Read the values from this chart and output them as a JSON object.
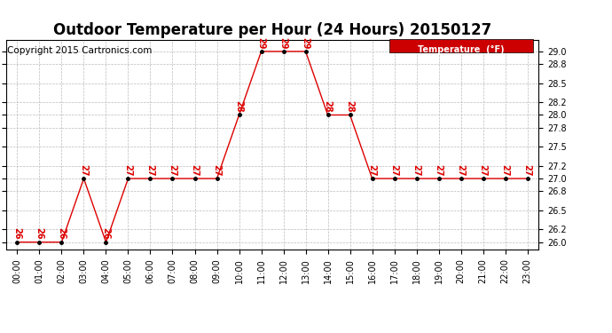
{
  "title": "Outdoor Temperature per Hour (24 Hours) 20150127",
  "copyright": "Copyright 2015 Cartronics.com",
  "legend_label": "Temperature  (°F)",
  "hours": [
    0,
    1,
    2,
    3,
    4,
    5,
    6,
    7,
    8,
    9,
    10,
    11,
    12,
    13,
    14,
    15,
    16,
    17,
    18,
    19,
    20,
    21,
    22,
    23
  ],
  "temps": [
    26,
    26,
    26,
    27,
    26,
    27,
    27,
    27,
    27,
    27,
    28,
    29,
    29,
    29,
    28,
    28,
    27,
    27,
    27,
    27,
    27,
    27,
    27,
    27
  ],
  "xlabels": [
    "00:00",
    "01:00",
    "02:00",
    "03:00",
    "04:00",
    "05:00",
    "06:00",
    "07:00",
    "08:00",
    "09:00",
    "10:00",
    "11:00",
    "12:00",
    "13:00",
    "14:00",
    "15:00",
    "16:00",
    "17:00",
    "18:00",
    "19:00",
    "20:00",
    "21:00",
    "22:00",
    "23:00"
  ],
  "ylim": [
    25.88,
    29.18
  ],
  "yticks": [
    26.0,
    26.2,
    26.5,
    26.8,
    27.0,
    27.2,
    27.5,
    27.8,
    28.0,
    28.2,
    28.5,
    28.8,
    29.0
  ],
  "line_color": "#dd0000",
  "marker_color": "#000000",
  "label_color": "#dd0000",
  "legend_bg": "#cc0000",
  "legend_text_color": "#ffffff",
  "bg_color": "#ffffff",
  "grid_color": "#bbbbbb",
  "title_fontsize": 12,
  "copyright_fontsize": 7.5,
  "label_fontsize": 7,
  "tick_fontsize": 7
}
